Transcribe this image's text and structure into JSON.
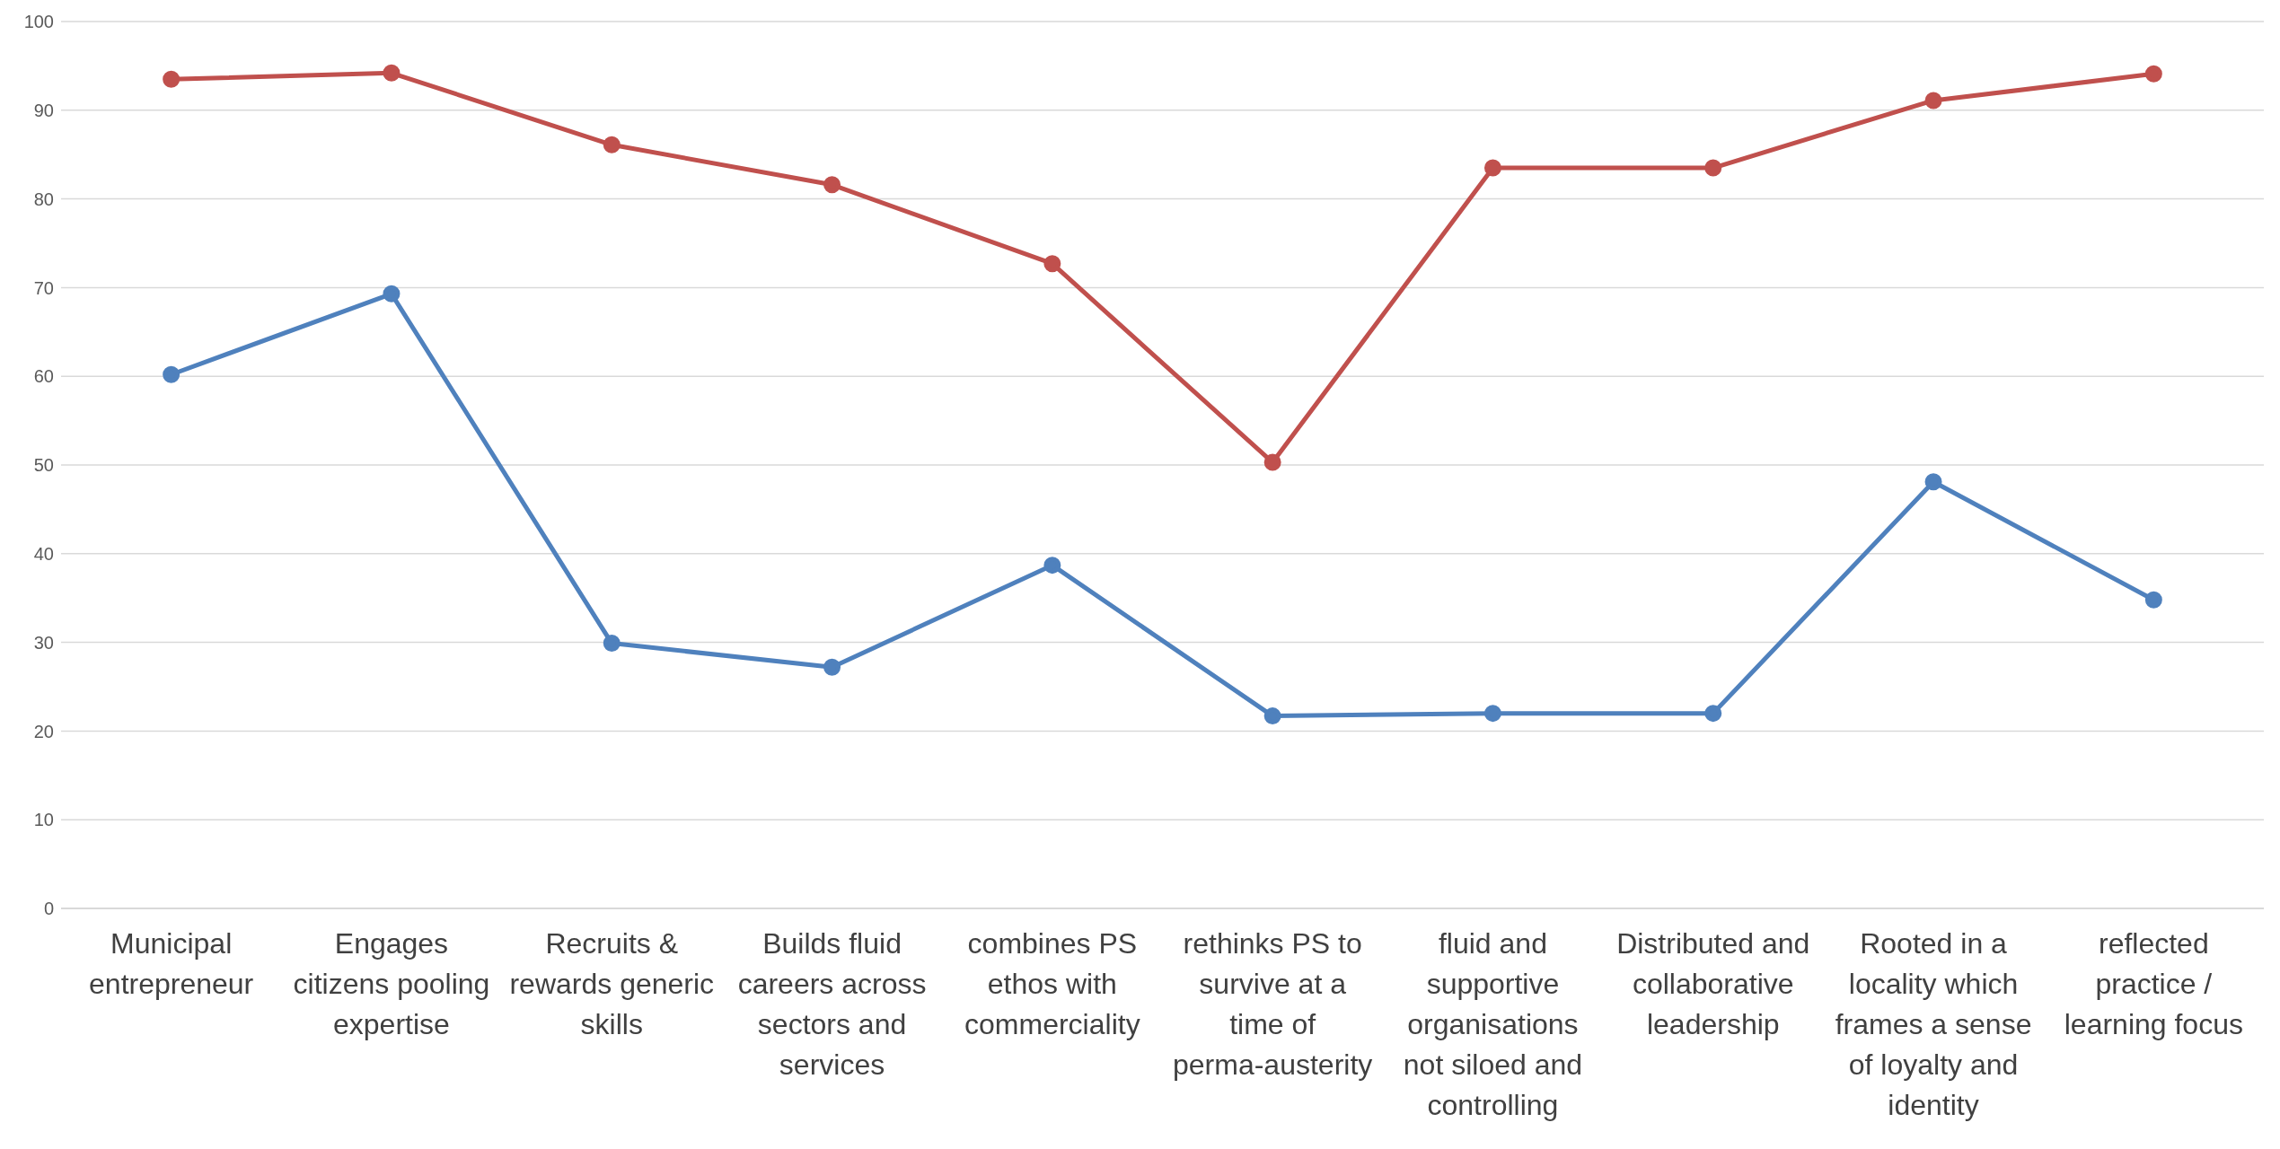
{
  "chart_data": {
    "type": "line",
    "categories": [
      "Municipal entrepreneur",
      "Engages citizens pooling expertise",
      "Recruits & rewards generic skills",
      "Builds fluid careers across sectors and services",
      "combines PS ethos with commerciality",
      "rethinks PS to survive at a time of perma-austerity",
      "fluid and supportive organisations not siloed and controlling",
      "Distributed and collaborative leadership",
      "Rooted in a locality which frames a sense of loyalty and identity",
      "reflected practice / learning focus"
    ],
    "series": [
      {
        "color": "#c0504d",
        "values": [
          93.5,
          94.2,
          86.1,
          81.6,
          72.7,
          50.3,
          83.5,
          83.5,
          91.1,
          94.1
        ]
      },
      {
        "color": "#4f81bd",
        "values": [
          60.2,
          69.3,
          29.9,
          27.2,
          38.7,
          21.7,
          22.0,
          22.0,
          48.1,
          34.8
        ]
      }
    ],
    "ylim": [
      0,
      100
    ],
    "yticks": [
      0,
      10,
      20,
      30,
      40,
      50,
      60,
      70,
      80,
      90,
      100
    ],
    "grid": "y",
    "marker": "circle",
    "line_style": "solid",
    "legend": false
  }
}
